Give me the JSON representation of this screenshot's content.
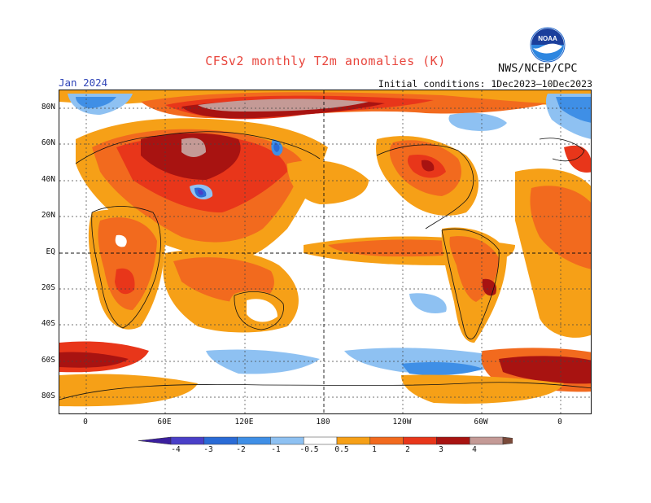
{
  "header": {
    "title": "CFSv2 monthly T2m anomalies (K)",
    "agency": "NWS/NCEP/CPC",
    "month": "Jan 2024",
    "initial_conditions": "Initial conditions: 1Dec2023–10Dec2023",
    "logo_text": "NOAA"
  },
  "axes": {
    "lat_labels": [
      "80N",
      "60N",
      "40N",
      "20N",
      "EQ",
      "20S",
      "40S",
      "60S",
      "80S"
    ],
    "lon_labels": [
      "0",
      "60E",
      "120E",
      "180",
      "120W",
      "60W",
      "0"
    ]
  },
  "legend": {
    "levels": [
      "-4",
      "-3",
      "-2",
      "-1",
      "-0.5",
      "0.5",
      "1",
      "2",
      "3",
      "4"
    ],
    "colors": {
      "lt_-4": "#3b1f9e",
      "-4_-3": "#4a3fc8",
      "-3_-2": "#2a6bd6",
      "-2_-1": "#3f8fe6",
      "-1_-0.5": "#8ec1f2",
      "neutral": "#ffffff",
      "0.5_1": "#f6a017",
      "1_2": "#f26a1e",
      "2_3": "#e8361a",
      "3_4": "#a81311",
      "4_5": "#c49a96",
      "gt_5": "#7a4a3a"
    }
  }
}
